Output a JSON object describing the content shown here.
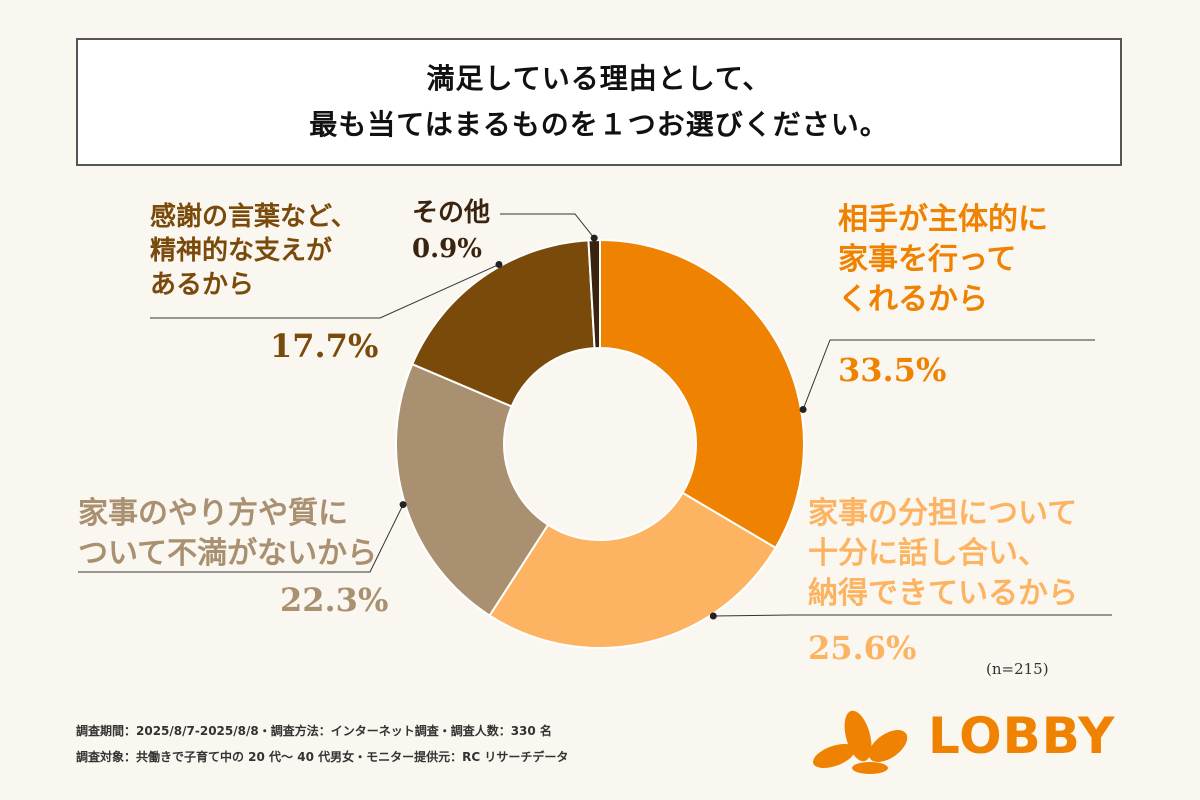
{
  "title": {
    "line1": "満足している理由として、",
    "line2": "最も当てはまるものを１つお選びください。"
  },
  "chart_data": {
    "type": "pie",
    "variant": "donut",
    "series": [
      {
        "name": "相手が主体的に家事を行ってくれるから",
        "value": 33.5,
        "label_lines": [
          "相手が主体的に",
          "家事を行って",
          "くれるから"
        ],
        "percent_label": "33.5%",
        "color": "#ef8200"
      },
      {
        "name": "家事の分担について十分に話し合い、納得できているから",
        "value": 25.6,
        "label_lines": [
          "家事の分担について",
          "十分に話し合い、",
          "納得できているから"
        ],
        "percent_label": "25.6%",
        "color": "#fdb462"
      },
      {
        "name": "家事のやり方や質について不満がないから",
        "value": 22.3,
        "label_lines": [
          "家事のやり方や質に",
          "ついて不満がないから"
        ],
        "percent_label": "22.3%",
        "color": "#a89070"
      },
      {
        "name": "感謝の言葉など、精神的な支えがあるから",
        "value": 17.7,
        "label_lines": [
          "感謝の言葉など、",
          "精神的な支えが",
          "あるから"
        ],
        "percent_label": "17.7%",
        "color": "#7a4a0a"
      },
      {
        "name": "その他",
        "value": 0.9,
        "label_lines": [
          "その他"
        ],
        "percent_label": "0.9%",
        "color": "#3a2410"
      }
    ],
    "start": "12 o'clock",
    "direction": "clockwise"
  },
  "label_colors": {
    "orange": "#ef8200",
    "light_orange": "#fdb462",
    "tan": "#a89070",
    "brown": "#7a4a0a",
    "dark": "#3a2410"
  },
  "sample_note": "(n=215)",
  "footnotes": {
    "line1": "調査期間：2025/8/7-2025/8/8・調査方法：インターネット調査・調査人数：330 名",
    "line2": "調査対象：共働きで子育て中の 20 代〜 40 代男女・モニター提供元：RC リサーチデータ"
  },
  "logo": {
    "text": "LOBBY",
    "color": "#ef8200"
  }
}
